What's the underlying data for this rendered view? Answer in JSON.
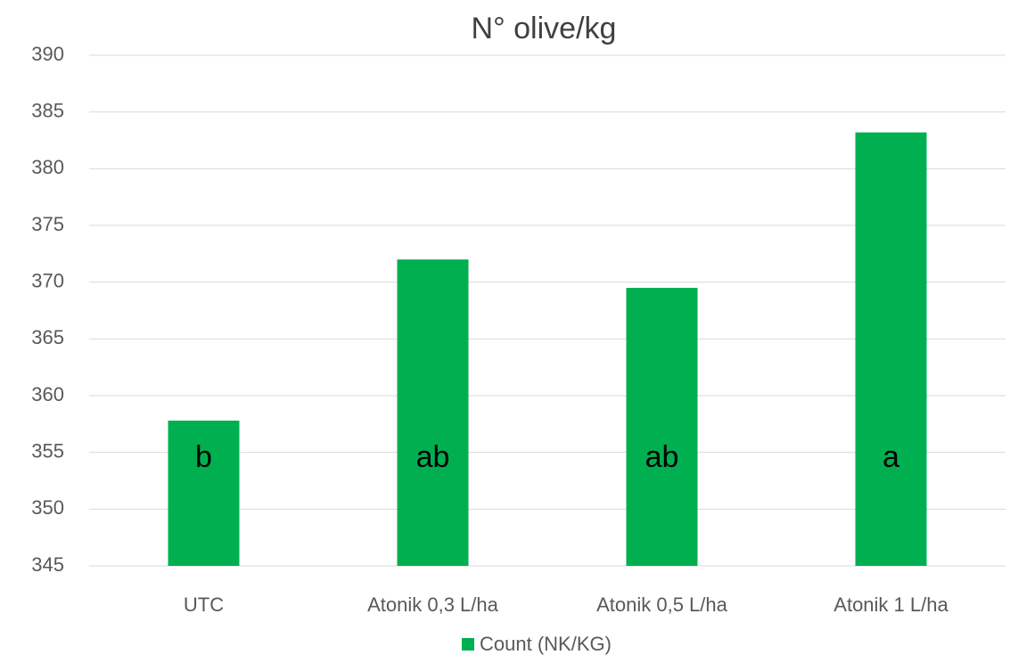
{
  "chart_data": {
    "type": "bar",
    "title": "N° olive/kg",
    "categories": [
      "UTC",
      "Atonik 0,3 L/ha",
      "Atonik 0,5 L/ha",
      "Atonik 1 L/ha"
    ],
    "series": [
      {
        "name": "Count (NK/KG)",
        "color": "#00b050",
        "values": [
          357.8,
          372.0,
          369.5,
          383.2
        ]
      }
    ],
    "annotations": [
      "b",
      "ab",
      "ab",
      "a"
    ],
    "ylim": [
      345,
      390
    ],
    "yticks": [
      345,
      350,
      355,
      360,
      365,
      370,
      375,
      380,
      385,
      390
    ],
    "grid": true,
    "legend": "bottom"
  }
}
